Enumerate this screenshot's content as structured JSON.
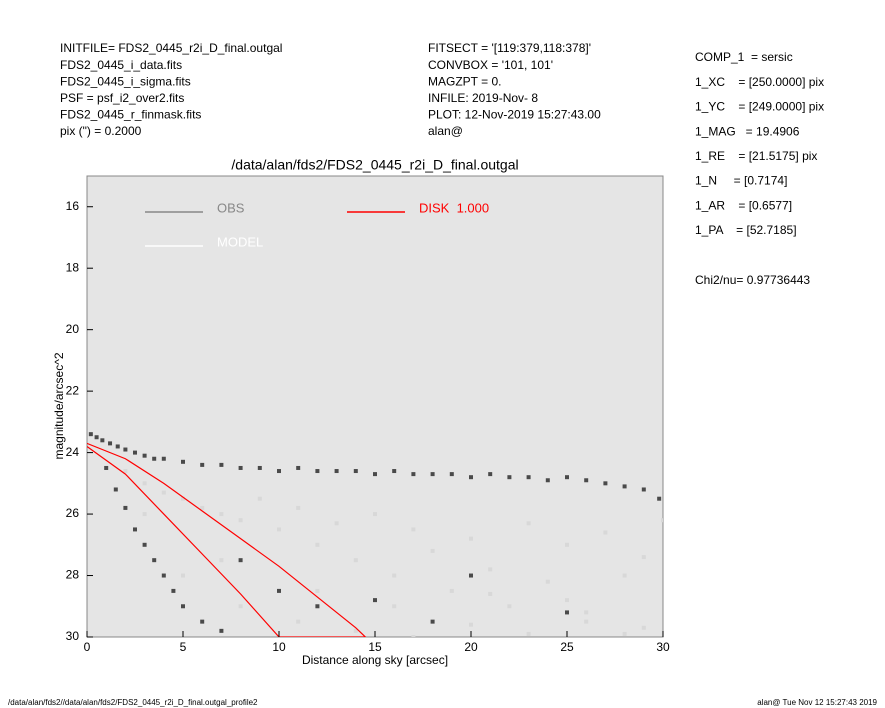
{
  "chart_data": {
    "type": "scatter",
    "title": "/data/alan/fds2/FDS2_0445_r2i_D_final.outgal",
    "x_label": "Distance along sky [arcsec]",
    "y_label": "magnitude/arcsec^2",
    "header_left": [
      "INITFILE= FDS2_0445_r2i_D_final.outgal",
      "FDS2_0445_i_data.fits",
      "FDS2_0445_i_sigma.fits",
      "PSF     = psf_i2_over2.fits",
      "FDS2_0445_r_finmask.fits",
      "pix (\") =  0.2000"
    ],
    "header_mid": [
      "FITSECT = '[119:379,118:378]'",
      "CONVBOX = '101, 101'",
      "MAGZPT  =            0.",
      "INFILE: 2019-Nov- 8",
      "PLOT: 12-Nov-2019 15:27:43.00",
      "alan@"
    ],
    "params": [
      "COMP_1  = sersic",
      "1_XC    = [250.0000] pix",
      "1_YC    = [249.0000] pix",
      "1_MAG   = 19.4906",
      "1_RE    = [21.5175] pix",
      "1_N     = [0.7174]",
      "1_AR    = [0.6577]",
      "1_PA    = [52.7185]"
    ],
    "chi2": "Chi2/nu=     0.97736443",
    "footer_left": "/data/alan/fds2//data/alan/fds2/FDS2_0445_r2i_D_final.outgal_profile2",
    "footer_right": "alan@  Tue Nov 12 15:27:43 2019",
    "xlim": [
      0,
      30
    ],
    "ylim": [
      30,
      15
    ],
    "xticks": [
      0,
      5,
      10,
      15,
      20,
      25,
      30
    ],
    "yticks": [
      16,
      18,
      20,
      22,
      24,
      26,
      28,
      30
    ],
    "series": [
      {
        "name": "OBS",
        "color": "#4a4a4a",
        "x": [
          0.2,
          0.5,
          0.8,
          1.2,
          1.6,
          2,
          2.5,
          3,
          3.5,
          4,
          5,
          6,
          7,
          8,
          9,
          10,
          11,
          12,
          13,
          14,
          15,
          16,
          17,
          18,
          19,
          20,
          21,
          22,
          23,
          24,
          25,
          26,
          27,
          28,
          29,
          29.8,
          1,
          1.5,
          2,
          2.5,
          3,
          3.5,
          4,
          4.5,
          5,
          6,
          7,
          8,
          10,
          12,
          15,
          18,
          20,
          25
        ],
        "values": [
          23.4,
          23.5,
          23.6,
          23.7,
          23.8,
          23.9,
          24.0,
          24.1,
          24.2,
          24.2,
          24.3,
          24.4,
          24.4,
          24.5,
          24.5,
          24.6,
          24.5,
          24.6,
          24.6,
          24.6,
          24.7,
          24.6,
          24.7,
          24.7,
          24.7,
          24.8,
          24.7,
          24.8,
          24.8,
          24.9,
          24.8,
          24.9,
          25.0,
          25.1,
          25.2,
          25.5,
          24.5,
          25.2,
          25.8,
          26.5,
          27,
          27.5,
          28,
          28.5,
          29,
          29.5,
          29.8,
          27.5,
          28.5,
          29,
          28.8,
          29.5,
          28,
          29.2
        ]
      },
      {
        "name": "MODEL",
        "color": "#d8d8d8",
        "x": [
          2,
          3,
          4,
          5,
          6,
          7,
          8,
          9,
          10,
          11,
          12,
          13,
          14,
          15,
          16,
          17,
          18,
          19,
          20,
          21,
          22,
          23,
          24,
          25,
          26,
          27,
          28,
          29,
          30,
          5,
          8,
          11,
          14,
          17,
          20,
          23,
          26,
          29,
          3,
          7,
          12,
          16,
          21,
          25,
          28
        ],
        "values": [
          24.6,
          25.0,
          25.3,
          25.5,
          25.8,
          26.0,
          26.2,
          25.5,
          26.5,
          25.8,
          27.0,
          26.3,
          27.5,
          26.0,
          28.0,
          26.5,
          27.2,
          28.5,
          26.8,
          27.8,
          29.0,
          26.3,
          28.2,
          27.0,
          29.5,
          26.6,
          28.0,
          27.4,
          26.2,
          28,
          29,
          29.5,
          29.8,
          30,
          29.6,
          29.9,
          29.2,
          29.7,
          26,
          27.5,
          28.5,
          29,
          28.6,
          28.8,
          29.9
        ]
      },
      {
        "name": "DISK  1.000",
        "color": "#ff0000",
        "line": true,
        "x": [
          0,
          2,
          4,
          6,
          8,
          10,
          12,
          14,
          14.5,
          10,
          8,
          6,
          4,
          2,
          0
        ],
        "values": [
          23.7,
          24.2,
          25.0,
          25.9,
          26.8,
          27.7,
          28.7,
          29.7,
          30,
          30,
          28.6,
          27.3,
          26.0,
          24.7,
          23.8
        ]
      }
    ]
  }
}
